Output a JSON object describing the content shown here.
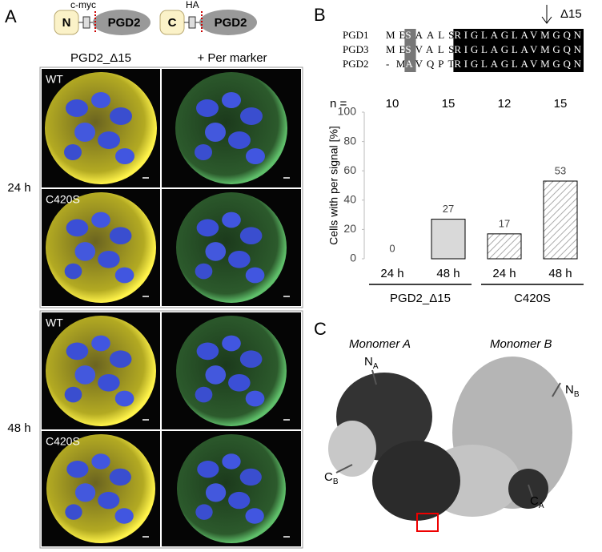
{
  "panel_a": {
    "label": "A",
    "construct_n": {
      "tag": "N",
      "epitope": "c-myc",
      "protein": "PGD2"
    },
    "construct_c": {
      "tag": "C",
      "epitope": "HA",
      "protein": "PGD2"
    },
    "column_headers": [
      "PGD2_Δ15",
      "+ Per marker"
    ],
    "row_labels": [
      "24 h",
      "48 h"
    ],
    "image_labels": [
      "WT",
      "C420S",
      "WT",
      "C420S"
    ]
  },
  "panel_b": {
    "label": "B",
    "arrow_label": "Δ15",
    "alignment": [
      {
        "name": "PGD1",
        "segments": [
          "ME",
          "S",
          "AALS",
          "RIGLAGLAVMGQN"
        ]
      },
      {
        "name": "PGD3",
        "segments": [
          "ME",
          "S",
          "VALS",
          "RIGLAGLAVMGQN"
        ]
      },
      {
        "name": "PGD2",
        "segments": [
          "-M",
          "A",
          "VQPT",
          "RIGLAGLAVMGQN"
        ]
      }
    ]
  },
  "chart_data": {
    "type": "bar",
    "y_label": "Cells with per signal [%]",
    "categories": [
      "24 h",
      "48 h",
      "24 h",
      "48 h"
    ],
    "values": [
      0,
      27,
      17,
      53
    ],
    "fills": [
      "#d9d9d9",
      "#d9d9d9",
      "hatched",
      "hatched"
    ],
    "groups": [
      "PGD2_Δ15",
      "C420S"
    ],
    "n_label": "n =",
    "n": [
      10,
      15,
      12,
      15
    ],
    "ylim": [
      0,
      100
    ],
    "yticks": [
      0,
      20,
      40,
      60,
      80,
      100
    ],
    "grid": false
  },
  "panel_c": {
    "label": "C",
    "monomers": [
      "Monomer A",
      "Monomer B"
    ],
    "termini": [
      {
        "base": "N",
        "sub": "A"
      },
      {
        "base": "N",
        "sub": "B"
      },
      {
        "base": "C",
        "sub": "B"
      },
      {
        "base": "C",
        "sub": "A"
      }
    ]
  }
}
